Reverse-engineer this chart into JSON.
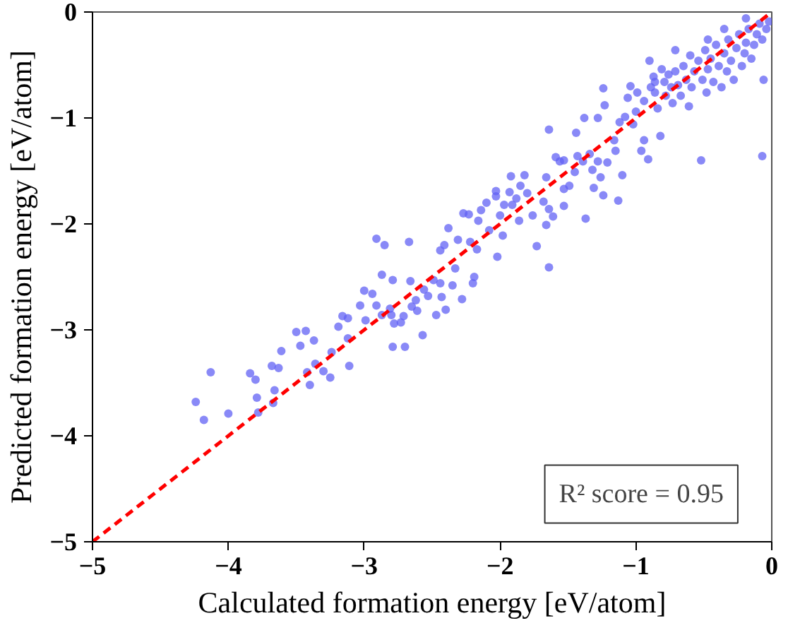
{
  "chart_data": {
    "type": "scatter",
    "xlabel": "Calculated formation energy [eV/atom]",
    "ylabel": "Predicted formation energy [eV/atom]",
    "xlim": [
      -5,
      0
    ],
    "ylim": [
      -5,
      0
    ],
    "xticks": [
      -5,
      -4,
      -3,
      -2,
      -1,
      0
    ],
    "yticks": [
      -5,
      -4,
      -3,
      -2,
      -1,
      0
    ],
    "grid": false,
    "annotations": [
      "R² score = 0.95"
    ],
    "series": [
      {
        "marker": "circle",
        "color": "#6262f4",
        "x": [
          -4.24,
          -4.18,
          -4.13,
          -4.0,
          -3.84,
          -3.8,
          -3.79,
          -3.78,
          -3.68,
          -3.66,
          -3.67,
          -3.63,
          -3.61,
          -3.5,
          -3.43,
          -3.47,
          -3.42,
          -3.4,
          -3.37,
          -3.36,
          -3.3,
          -3.25,
          -3.24,
          -3.19,
          -3.16,
          -3.12,
          -3.11,
          -3.12,
          -3.03,
          -3.0,
          -2.99,
          -2.94,
          -2.91,
          -2.91,
          -2.87,
          -2.85,
          -2.87,
          -2.81,
          -2.8,
          -2.79,
          -2.79,
          -2.78,
          -2.73,
          -2.71,
          -2.7,
          -2.67,
          -2.66,
          -2.65,
          -2.62,
          -2.61,
          -2.57,
          -2.56,
          -2.53,
          -2.49,
          -2.47,
          -2.44,
          -2.44,
          -2.43,
          -2.41,
          -2.4,
          -2.38,
          -2.35,
          -2.33,
          -2.31,
          -2.28,
          -2.27,
          -2.23,
          -2.22,
          -2.2,
          -2.19,
          -2.17,
          -2.16,
          -2.14,
          -2.1,
          -2.08,
          -2.03,
          -2.03,
          -2.02,
          -2.0,
          -1.97,
          -1.98,
          -1.93,
          -1.92,
          -1.91,
          -1.88,
          -1.85,
          -1.82,
          -1.86,
          -1.8,
          -1.76,
          -1.73,
          -1.68,
          -1.66,
          -1.66,
          -1.64,
          -1.64,
          -1.64,
          -1.61,
          -1.59,
          -1.56,
          -1.53,
          -1.53,
          -1.53,
          -1.49,
          -1.45,
          -1.44,
          -1.43,
          -1.39,
          -1.38,
          -1.37,
          -1.34,
          -1.32,
          -1.31,
          -1.28,
          -1.28,
          -1.26,
          -1.24,
          -1.23,
          -1.21,
          -1.24,
          -1.16,
          -1.15,
          -1.13,
          -1.12,
          -1.1,
          -1.08,
          -1.06,
          -1.04,
          -1.02,
          -1.0,
          -0.99,
          -0.96,
          -0.94,
          -0.94,
          -0.91,
          -0.9,
          -0.89,
          -0.87,
          -0.86,
          -0.84,
          -0.82,
          -0.81,
          -0.79,
          -0.78,
          -0.76,
          -0.74,
          -0.73,
          -0.71,
          -0.69,
          -0.67,
          -0.65,
          -0.63,
          -0.61,
          -0.6,
          -0.59,
          -0.57,
          -0.54,
          -0.52,
          -0.51,
          -0.49,
          -0.48,
          -0.47,
          -0.45,
          -0.43,
          -0.41,
          -0.39,
          -0.37,
          -0.35,
          -0.33,
          -0.32,
          -0.3,
          -0.28,
          -0.26,
          -0.24,
          -0.22,
          -0.2,
          -0.19,
          -0.17,
          -0.15,
          -0.13,
          -0.11,
          -0.09,
          -0.07,
          -0.07,
          -0.06,
          -0.04,
          -0.02,
          -0.19,
          -0.35,
          -0.47,
          -0.71,
          -0.86
        ],
        "values": [
          -3.68,
          -3.85,
          -3.4,
          -3.79,
          -3.41,
          -3.47,
          -3.64,
          -3.78,
          -3.34,
          -3.57,
          -3.69,
          -3.36,
          -3.2,
          -3.02,
          -3.01,
          -3.15,
          -3.4,
          -3.52,
          -3.1,
          -3.32,
          -3.39,
          -3.45,
          -3.21,
          -2.97,
          -2.87,
          -2.89,
          -3.34,
          -3.08,
          -2.77,
          -2.63,
          -2.91,
          -2.66,
          -2.77,
          -2.14,
          -2.48,
          -2.2,
          -2.86,
          -2.8,
          -2.86,
          -3.16,
          -2.53,
          -2.94,
          -2.93,
          -2.87,
          -3.16,
          -2.17,
          -2.54,
          -2.78,
          -2.72,
          -2.82,
          -3.05,
          -2.62,
          -2.68,
          -2.53,
          -2.86,
          -2.25,
          -2.56,
          -2.69,
          -2.2,
          -2.81,
          -2.04,
          -2.58,
          -2.42,
          -2.15,
          -2.71,
          -1.9,
          -1.91,
          -2.17,
          -2.56,
          -2.5,
          -2.24,
          -1.97,
          -1.87,
          -1.8,
          -2.06,
          -1.69,
          -1.74,
          -2.31,
          -1.92,
          -1.82,
          -2.11,
          -1.7,
          -1.55,
          -1.82,
          -1.76,
          -1.64,
          -1.54,
          -1.97,
          -1.71,
          -1.92,
          -2.21,
          -1.79,
          -2.01,
          -1.56,
          -2.41,
          -1.11,
          -1.86,
          -1.93,
          -1.37,
          -1.41,
          -1.4,
          -1.67,
          -1.83,
          -1.64,
          -1.51,
          -1.14,
          -1.36,
          -1.41,
          -1.0,
          -1.95,
          -1.34,
          -1.49,
          -1.66,
          -1.41,
          -1.0,
          -1.56,
          -1.73,
          -0.88,
          -1.42,
          -0.72,
          -1.21,
          -1.31,
          -1.78,
          -1.04,
          -1.54,
          -0.99,
          -0.81,
          -0.7,
          -1.06,
          -0.94,
          -0.76,
          -1.31,
          -1.21,
          -0.84,
          -1.39,
          -0.46,
          -0.71,
          -0.61,
          -0.76,
          -0.91,
          -1.17,
          -0.54,
          -0.66,
          -0.79,
          -0.59,
          -0.71,
          -0.86,
          -0.56,
          -0.69,
          -0.79,
          -0.51,
          -0.64,
          -0.89,
          -0.41,
          -0.71,
          -0.56,
          -0.46,
          -1.4,
          -0.64,
          -0.36,
          -0.76,
          -0.54,
          -0.44,
          -0.66,
          -0.31,
          -0.51,
          -0.71,
          -0.39,
          -0.56,
          -0.26,
          -0.46,
          -0.64,
          -0.34,
          -0.21,
          -0.51,
          -0.39,
          -0.29,
          -0.16,
          -0.44,
          -0.31,
          -0.21,
          -0.11,
          -0.26,
          -1.36,
          -0.64,
          -0.16,
          -0.09,
          -0.06,
          -0.16,
          -0.26,
          -0.36,
          -0.66
        ]
      },
      {
        "type": "line",
        "color": "#ff0000",
        "line_style": "dashed",
        "x": [
          -5,
          0
        ],
        "values": [
          -5,
          0
        ]
      }
    ]
  }
}
